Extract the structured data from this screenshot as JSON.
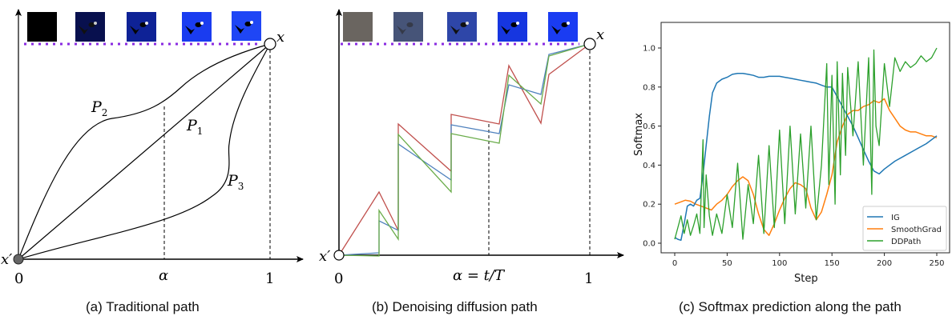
{
  "panels": {
    "a": {
      "caption": "(a) Traditional path",
      "origin_label": "x'",
      "target_label": "x",
      "x_ticks": [
        "0",
        "α",
        "1"
      ],
      "path_labels": [
        "P1",
        "P2",
        "P3"
      ],
      "thumbnails": [
        {
          "desc": "black baseline",
          "color": "#000000"
        },
        {
          "desc": "dark navy birds",
          "color": "#08104e"
        },
        {
          "desc": "navy birds",
          "color": "#0e2296"
        },
        {
          "desc": "bright blue birds",
          "color": "#1a3cf0"
        },
        {
          "desc": "bright blue birds",
          "color": "#1f46f5"
        }
      ]
    },
    "b": {
      "caption": "(b) Denoising diffusion path",
      "origin_label": "x'",
      "target_label": "x",
      "x_ticks": [
        "0",
        "α = t/T",
        "1"
      ],
      "series_colors": {
        "red": "#c0504d",
        "blue": "#4f81bd",
        "green": "#6aac4a"
      },
      "thumbnails": [
        {
          "desc": "gray noise",
          "color": "#6a6560"
        },
        {
          "desc": "noisy slate birds",
          "color": "#465478"
        },
        {
          "desc": "noisy blue birds",
          "color": "#2e46a8"
        },
        {
          "desc": "blue birds",
          "color": "#1636e0"
        },
        {
          "desc": "clean blue birds",
          "color": "#1a3cf2"
        }
      ]
    },
    "c": {
      "caption": "(c) Softmax prediction along the path"
    }
  },
  "chart_data": [
    {
      "panel": "a",
      "type": "line",
      "title": "(a) Traditional path",
      "xlabel": "",
      "ylabel": "",
      "x_ticks": [
        "0",
        "α",
        "1"
      ],
      "series": [
        {
          "name": "P1",
          "shape": "straight line from x' to x"
        },
        {
          "name": "P2",
          "shape": "concave curve above P1"
        },
        {
          "name": "P3",
          "shape": "convex curve below P1, bulging right"
        }
      ],
      "annotations": [
        "x'",
        "x",
        "P1",
        "P2",
        "P3",
        "dashed vertical at α",
        "dashed vertical at 1",
        "purple dotted line at target level"
      ]
    },
    {
      "panel": "b",
      "type": "line",
      "title": "(b) Denoising diffusion path",
      "xlabel": "α = t/T",
      "x_ticks": [
        "0",
        "1"
      ],
      "series": [
        {
          "name": "red",
          "color": "#c0504d",
          "points": [
            [
              0,
              0
            ],
            [
              0.15,
              0.3
            ],
            [
              0.24,
              0.08
            ],
            [
              0.24,
              0.58
            ],
            [
              0.43,
              0.34
            ],
            [
              0.43,
              0.62
            ],
            [
              0.64,
              0.58
            ],
            [
              0.68,
              0.78
            ],
            [
              0.88,
              0.48
            ],
            [
              0.9,
              0.64
            ],
            [
              1,
              1
            ]
          ]
        },
        {
          "name": "blue",
          "color": "#4f81bd",
          "points": [
            [
              0,
              0
            ],
            [
              0.15,
              0.01
            ],
            [
              0.15,
              0.19
            ],
            [
              0.24,
              0.14
            ],
            [
              0.24,
              0.5
            ],
            [
              0.43,
              0.31
            ],
            [
              0.43,
              0.56
            ],
            [
              0.64,
              0.53
            ],
            [
              0.68,
              0.74
            ],
            [
              0.88,
              0.66
            ],
            [
              0.9,
              0.9
            ],
            [
              1,
              1
            ]
          ]
        },
        {
          "name": "green",
          "color": "#6aac4a",
          "points": [
            [
              0,
              0
            ],
            [
              0.15,
              0.0
            ],
            [
              0.15,
              0.23
            ],
            [
              0.24,
              0.07
            ],
            [
              0.24,
              0.54
            ],
            [
              0.43,
              0.28
            ],
            [
              0.43,
              0.52
            ],
            [
              0.64,
              0.47
            ],
            [
              0.68,
              0.72
            ],
            [
              0.88,
              0.61
            ],
            [
              0.9,
              0.91
            ],
            [
              1,
              1
            ]
          ]
        }
      ],
      "annotations": [
        "x'",
        "x",
        "dashed vertical near α≈0.6",
        "dashed vertical at 1",
        "purple dotted line at target level"
      ]
    },
    {
      "panel": "c",
      "type": "line",
      "title": "(c) Softmax prediction along the path",
      "xlabel": "Step",
      "ylabel": "Softmax",
      "xlim": [
        -8,
        262
      ],
      "ylim": [
        -0.05,
        1.05
      ],
      "x_ticks": [
        0,
        50,
        100,
        150,
        200,
        250
      ],
      "y_ticks": [
        "0.0",
        "0.2",
        "0.4",
        "0.6",
        "0.8",
        "1.0"
      ],
      "grid": false,
      "legend_position": "lower right",
      "legend": [
        "IG",
        "SmoothGrad",
        "DDPath"
      ],
      "series": [
        {
          "name": "IG",
          "color": "#1f77b4",
          "x": [
            0,
            3,
            6,
            9,
            12,
            15,
            18,
            21,
            24,
            27,
            30,
            33,
            36,
            40,
            45,
            50,
            55,
            60,
            65,
            70,
            75,
            80,
            85,
            90,
            95,
            100,
            105,
            110,
            115,
            120,
            125,
            130,
            135,
            140,
            145,
            150,
            155,
            160,
            165,
            170,
            175,
            180,
            185,
            190,
            195,
            200,
            210,
            220,
            230,
            240,
            250
          ],
          "y": [
            0.03,
            0.02,
            0.015,
            0.1,
            0.19,
            0.2,
            0.19,
            0.22,
            0.23,
            0.35,
            0.5,
            0.65,
            0.77,
            0.82,
            0.84,
            0.85,
            0.865,
            0.87,
            0.87,
            0.865,
            0.86,
            0.85,
            0.85,
            0.855,
            0.855,
            0.855,
            0.85,
            0.845,
            0.84,
            0.835,
            0.83,
            0.825,
            0.82,
            0.81,
            0.8,
            0.8,
            0.75,
            0.7,
            0.65,
            0.6,
            0.54,
            0.48,
            0.42,
            0.37,
            0.355,
            0.38,
            0.42,
            0.45,
            0.48,
            0.51,
            0.55
          ]
        },
        {
          "name": "SmoothGrad",
          "color": "#ff7f0e",
          "x": [
            0,
            5,
            10,
            15,
            20,
            25,
            30,
            35,
            40,
            45,
            50,
            55,
            60,
            65,
            70,
            75,
            80,
            85,
            90,
            95,
            100,
            105,
            110,
            115,
            120,
            125,
            130,
            135,
            140,
            145,
            150,
            155,
            160,
            165,
            170,
            175,
            180,
            185,
            190,
            195,
            200,
            205,
            210,
            215,
            220,
            225,
            230,
            235,
            240,
            245,
            250
          ],
          "y": [
            0.2,
            0.21,
            0.22,
            0.215,
            0.2,
            0.19,
            0.18,
            0.17,
            0.2,
            0.22,
            0.25,
            0.29,
            0.32,
            0.34,
            0.32,
            0.25,
            0.15,
            0.07,
            0.04,
            0.1,
            0.17,
            0.23,
            0.28,
            0.31,
            0.3,
            0.28,
            0.18,
            0.12,
            0.16,
            0.25,
            0.35,
            0.52,
            0.6,
            0.66,
            0.68,
            0.68,
            0.7,
            0.71,
            0.73,
            0.72,
            0.74,
            0.68,
            0.64,
            0.6,
            0.58,
            0.57,
            0.57,
            0.56,
            0.55,
            0.55,
            0.54
          ]
        },
        {
          "name": "DDPath",
          "color": "#2ca02c",
          "note": "highly oscillatory; values sampled",
          "x": [
            0,
            3,
            6,
            9,
            12,
            15,
            18,
            21,
            24,
            27,
            28,
            30,
            33,
            36,
            40,
            45,
            50,
            55,
            60,
            65,
            70,
            75,
            80,
            85,
            90,
            95,
            100,
            105,
            110,
            115,
            120,
            125,
            130,
            135,
            140,
            145,
            147,
            150,
            153,
            155,
            158,
            160,
            163,
            165,
            170,
            175,
            180,
            185,
            188,
            190,
            192,
            195,
            200,
            205,
            210,
            215,
            220,
            225,
            230,
            235,
            240,
            245,
            250
          ],
          "y": [
            0.02,
            0.08,
            0.14,
            0.05,
            0.12,
            0.04,
            0.09,
            0.15,
            0.05,
            0.53,
            0.08,
            0.35,
            0.14,
            0.04,
            0.15,
            0.05,
            0.25,
            0.08,
            0.41,
            0.02,
            0.3,
            0.1,
            0.45,
            0.05,
            0.5,
            0.08,
            0.58,
            0.1,
            0.6,
            0.15,
            0.56,
            0.18,
            0.6,
            0.12,
            0.4,
            0.92,
            0.3,
            0.86,
            0.2,
            0.93,
            0.35,
            0.87,
            0.45,
            0.9,
            0.55,
            0.93,
            0.4,
            0.95,
            0.25,
            0.99,
            0.6,
            0.5,
            0.92,
            0.7,
            0.95,
            0.88,
            0.93,
            0.9,
            0.92,
            0.96,
            0.93,
            0.95,
            1.0
          ]
        }
      ]
    }
  ]
}
